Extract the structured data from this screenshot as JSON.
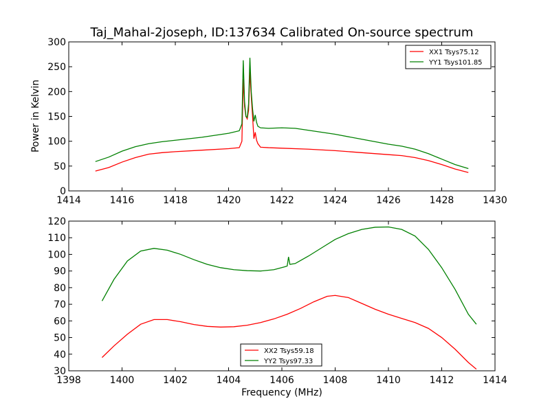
{
  "chart_data": [
    {
      "type": "line",
      "title": "Taj_Mahal-2joseph, ID:137634 Calibrated On-source spectrum",
      "xlabel": "",
      "ylabel": "Power in Kelvin",
      "xlim": [
        1414,
        1430
      ],
      "ylim": [
        0,
        300
      ],
      "xticks": [
        1414,
        1416,
        1418,
        1420,
        1422,
        1424,
        1426,
        1428,
        1430
      ],
      "yticks": [
        0,
        50,
        100,
        150,
        200,
        250,
        300
      ],
      "legend_position": "top-right",
      "grid": false,
      "series": [
        {
          "name": "XX1 Tsys75.12",
          "color": "#ff0000",
          "points": [
            [
              1415.0,
              40
            ],
            [
              1415.5,
              47
            ],
            [
              1416.0,
              58
            ],
            [
              1416.5,
              67
            ],
            [
              1417.0,
              74
            ],
            [
              1417.5,
              77
            ],
            [
              1418.0,
              79
            ],
            [
              1419.0,
              82
            ],
            [
              1420.0,
              85
            ],
            [
              1420.4,
              87
            ],
            [
              1420.5,
              100
            ],
            [
              1420.55,
              225
            ],
            [
              1420.6,
              170
            ],
            [
              1420.65,
              150
            ],
            [
              1420.7,
              145
            ],
            [
              1420.75,
              162
            ],
            [
              1420.8,
              240
            ],
            [
              1420.85,
              190
            ],
            [
              1420.9,
              150
            ],
            [
              1420.95,
              105
            ],
            [
              1421.0,
              118
            ],
            [
              1421.05,
              102
            ],
            [
              1421.1,
              95
            ],
            [
              1421.2,
              88
            ],
            [
              1421.5,
              87
            ],
            [
              1422.0,
              86
            ],
            [
              1423.0,
              84
            ],
            [
              1424.0,
              81
            ],
            [
              1425.0,
              77
            ],
            [
              1426.0,
              73
            ],
            [
              1426.5,
              71
            ],
            [
              1427.0,
              67
            ],
            [
              1427.5,
              61
            ],
            [
              1428.0,
              53
            ],
            [
              1428.5,
              44
            ],
            [
              1429.0,
              37
            ]
          ]
        },
        {
          "name": "YY1 Tsys101.85",
          "color": "#008000",
          "points": [
            [
              1415.0,
              59
            ],
            [
              1415.5,
              68
            ],
            [
              1416.0,
              80
            ],
            [
              1416.5,
              89
            ],
            [
              1417.0,
              95
            ],
            [
              1417.5,
              99
            ],
            [
              1418.0,
              102
            ],
            [
              1419.0,
              108
            ],
            [
              1420.0,
              116
            ],
            [
              1420.4,
              121
            ],
            [
              1420.5,
              135
            ],
            [
              1420.55,
              263
            ],
            [
              1420.6,
              180
            ],
            [
              1420.65,
              150
            ],
            [
              1420.7,
              148
            ],
            [
              1420.75,
              175
            ],
            [
              1420.8,
              268
            ],
            [
              1420.85,
              200
            ],
            [
              1420.9,
              165
            ],
            [
              1420.95,
              140
            ],
            [
              1421.0,
              153
            ],
            [
              1421.05,
              138
            ],
            [
              1421.1,
              130
            ],
            [
              1421.2,
              127
            ],
            [
              1421.5,
              126
            ],
            [
              1422.0,
              127
            ],
            [
              1422.5,
              126
            ],
            [
              1423.0,
              122
            ],
            [
              1424.0,
              114
            ],
            [
              1425.0,
              104
            ],
            [
              1426.0,
              94
            ],
            [
              1426.5,
              90
            ],
            [
              1427.0,
              84
            ],
            [
              1427.5,
              75
            ],
            [
              1428.0,
              64
            ],
            [
              1428.5,
              53
            ],
            [
              1429.0,
              45
            ]
          ]
        }
      ]
    },
    {
      "type": "line",
      "title": "",
      "xlabel": "Frequency (MHz)",
      "ylabel": "",
      "xlim": [
        1398,
        1414
      ],
      "ylim": [
        30,
        120
      ],
      "xticks": [
        1398,
        1400,
        1402,
        1404,
        1406,
        1408,
        1410,
        1412,
        1414
      ],
      "yticks": [
        30,
        40,
        50,
        60,
        70,
        80,
        90,
        100,
        110,
        120
      ],
      "legend_position": "lower-center",
      "grid": false,
      "series": [
        {
          "name": "XX2 Tsys59.18",
          "color": "#ff0000",
          "points": [
            [
              1399.25,
              38
            ],
            [
              1399.7,
              45
            ],
            [
              1400.2,
              52
            ],
            [
              1400.7,
              58
            ],
            [
              1401.2,
              60.8
            ],
            [
              1401.7,
              60.8
            ],
            [
              1402.2,
              59.5
            ],
            [
              1402.7,
              57.8
            ],
            [
              1403.2,
              56.7
            ],
            [
              1403.7,
              56.3
            ],
            [
              1404.2,
              56.5
            ],
            [
              1404.7,
              57.4
            ],
            [
              1405.2,
              59
            ],
            [
              1405.7,
              61.2
            ],
            [
              1406.2,
              64
            ],
            [
              1406.7,
              67.5
            ],
            [
              1407.2,
              71.5
            ],
            [
              1407.7,
              74.8
            ],
            [
              1408.0,
              75.3
            ],
            [
              1408.5,
              74
            ],
            [
              1409.0,
              70.5
            ],
            [
              1409.5,
              67
            ],
            [
              1410.0,
              64
            ],
            [
              1410.5,
              61.5
            ],
            [
              1411.0,
              59
            ],
            [
              1411.5,
              55.5
            ],
            [
              1412.0,
              50
            ],
            [
              1412.5,
              43
            ],
            [
              1413.0,
              35
            ],
            [
              1413.3,
              31
            ]
          ]
        },
        {
          "name": "YY2 Tsys97.33",
          "color": "#008000",
          "points": [
            [
              1399.25,
              72
            ],
            [
              1399.7,
              85
            ],
            [
              1400.2,
              96
            ],
            [
              1400.7,
              102
            ],
            [
              1401.2,
              103.6
            ],
            [
              1401.7,
              102.5
            ],
            [
              1402.2,
              100
            ],
            [
              1402.7,
              96.8
            ],
            [
              1403.2,
              94
            ],
            [
              1403.7,
              92
            ],
            [
              1404.2,
              90.8
            ],
            [
              1404.7,
              90.2
            ],
            [
              1405.2,
              90
            ],
            [
              1405.7,
              90.8
            ],
            [
              1406.1,
              92.5
            ],
            [
              1406.2,
              93
            ],
            [
              1406.25,
              98.5
            ],
            [
              1406.3,
              94
            ],
            [
              1406.5,
              94.5
            ],
            [
              1407.0,
              99
            ],
            [
              1407.5,
              104
            ],
            [
              1408.0,
              109
            ],
            [
              1408.5,
              112.5
            ],
            [
              1409.0,
              115
            ],
            [
              1409.5,
              116.3
            ],
            [
              1410.0,
              116.5
            ],
            [
              1410.5,
              115
            ],
            [
              1411.0,
              111
            ],
            [
              1411.5,
              103
            ],
            [
              1412.0,
              92
            ],
            [
              1412.5,
              79
            ],
            [
              1413.0,
              64
            ],
            [
              1413.3,
              58
            ]
          ]
        }
      ]
    }
  ]
}
